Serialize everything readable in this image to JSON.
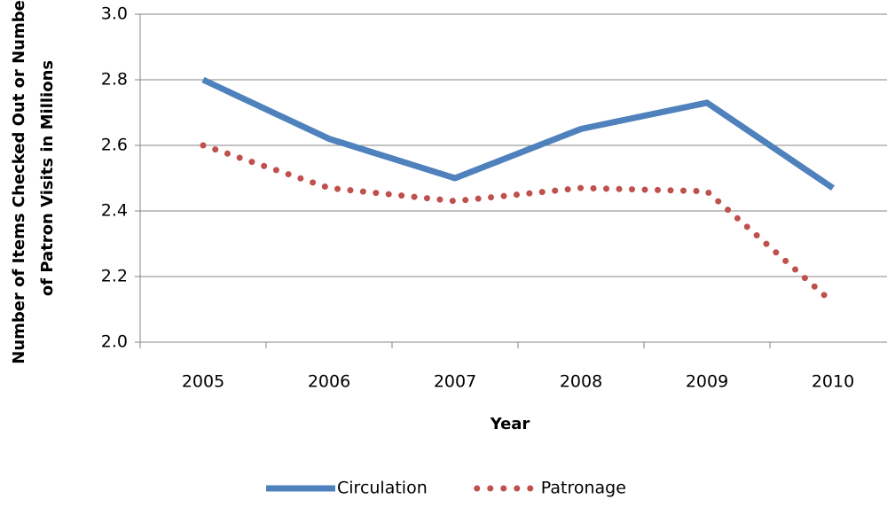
{
  "chart_data": {
    "type": "line",
    "x_label": "Year",
    "y_label": [
      "Number of Items Checked Out or Number",
      "of Patron Visits in Millions"
    ],
    "categories": [
      "2005",
      "2006",
      "2007",
      "2008",
      "2009",
      "2010"
    ],
    "series": [
      {
        "name": "Circulation",
        "color": "#4f81bd",
        "style": "solid",
        "values": [
          2.8,
          2.62,
          2.5,
          2.65,
          2.73,
          2.47
        ]
      },
      {
        "name": "Patronage",
        "color": "#c0504d",
        "style": "dotted",
        "values": [
          2.6,
          2.47,
          2.43,
          2.47,
          2.46,
          2.12
        ]
      }
    ],
    "ylim": [
      2.0,
      3.0
    ],
    "yticks": [
      {
        "value": 2.0,
        "label": "2.0"
      },
      2.2,
      2.4,
      2.6,
      2.8,
      {
        "value": 3.0,
        "label": "3.0"
      }
    ],
    "grid": true,
    "legend": "bottom"
  }
}
